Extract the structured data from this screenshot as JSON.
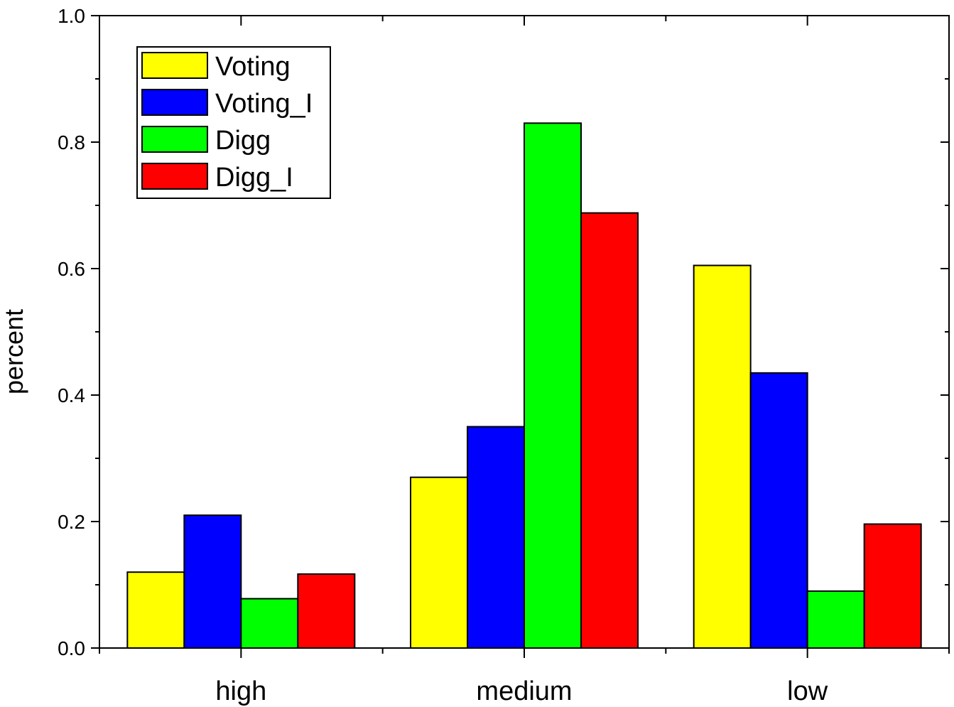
{
  "chart_data": {
    "type": "bar",
    "title": "",
    "xlabel": "",
    "ylabel": "percent",
    "categories": [
      "high",
      "medium",
      "low"
    ],
    "ylim": [
      0.0,
      1.0
    ],
    "yticks": [
      "0.0",
      "0.2",
      "0.4",
      "0.6",
      "0.8",
      "1.0"
    ],
    "grid": false,
    "legend_position": "top-left",
    "series": [
      {
        "name": "Voting",
        "color": "#ffff00",
        "values": [
          0.12,
          0.27,
          0.605
        ]
      },
      {
        "name": "Voting_I",
        "color": "#0000ff",
        "values": [
          0.21,
          0.35,
          0.435
        ]
      },
      {
        "name": "Digg",
        "color": "#00ff00",
        "values": [
          0.078,
          0.83,
          0.09
        ]
      },
      {
        "name": "Digg_I",
        "color": "#ff0000",
        "values": [
          0.117,
          0.688,
          0.196
        ]
      }
    ]
  }
}
